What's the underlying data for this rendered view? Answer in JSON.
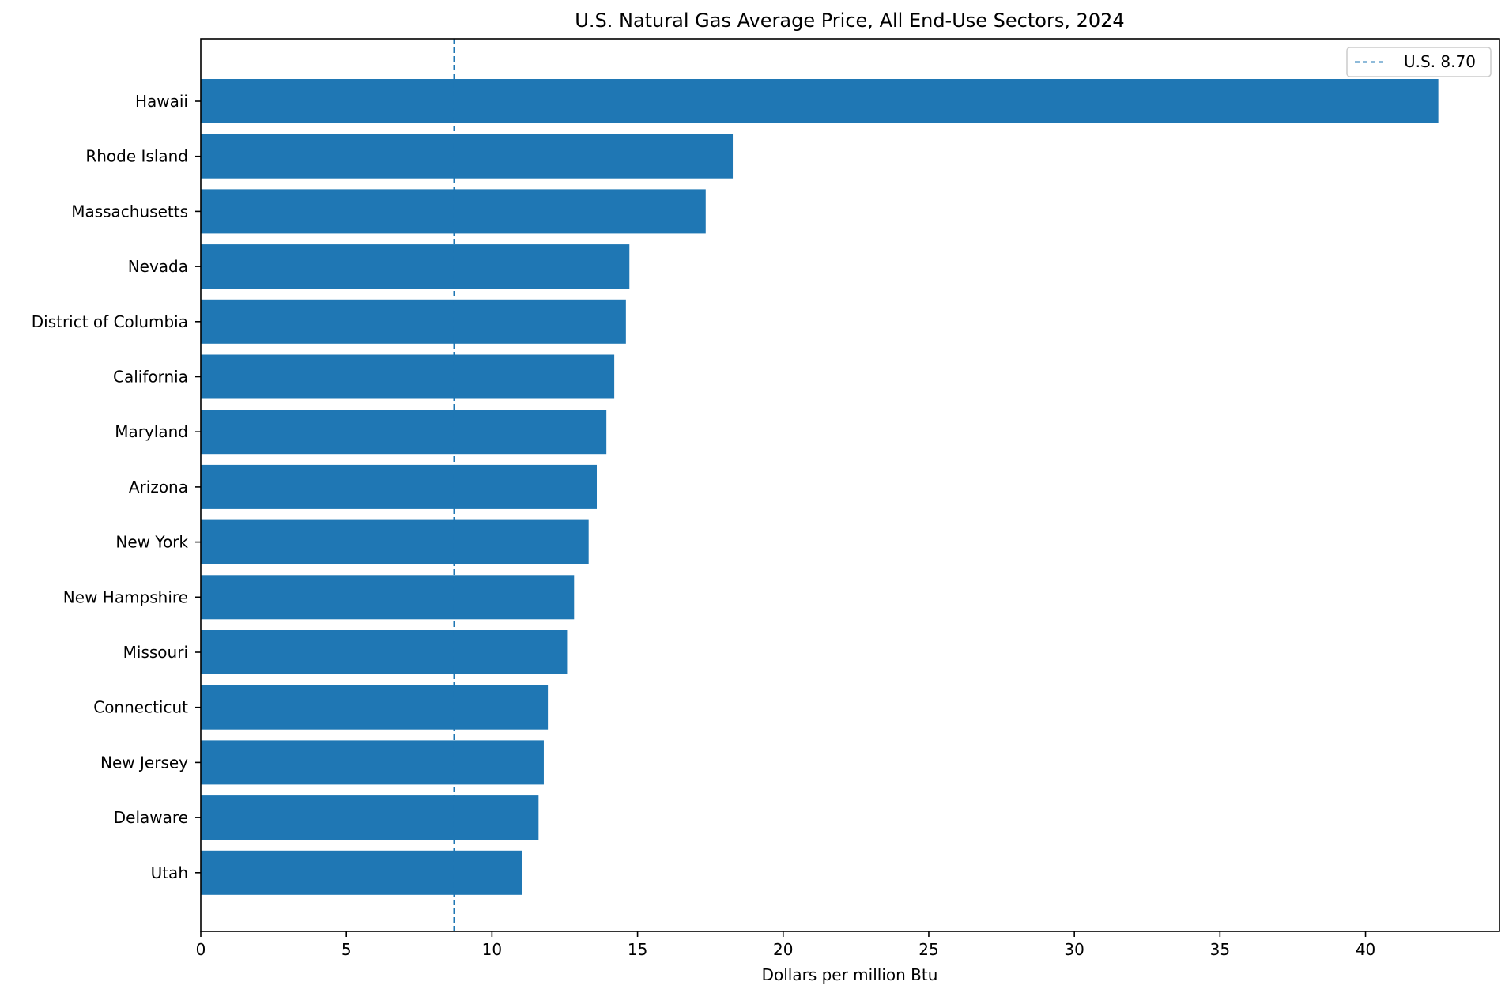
{
  "chart_data": {
    "type": "bar",
    "orientation": "horizontal",
    "title": "U.S. Natural Gas Average Price, All End-Use Sectors, 2024",
    "xlabel": "Dollars per million Btu",
    "ylabel": "",
    "xlim": [
      0,
      44.6
    ],
    "xticks": [
      0,
      5,
      10,
      15,
      20,
      25,
      30,
      35,
      40
    ],
    "grid": false,
    "legend_position": "top-right",
    "bar_color": "#1f77b4",
    "categories": [
      "Hawaii",
      "Rhode Island",
      "Massachusetts",
      "Nevada",
      "District of Columbia",
      "California",
      "Maryland",
      "Arizona",
      "New York",
      "New Hampshire",
      "Missouri",
      "Connecticut",
      "New Jersey",
      "Delaware",
      "Utah"
    ],
    "values": [
      42.5,
      18.27,
      17.34,
      14.72,
      14.6,
      14.2,
      13.93,
      13.6,
      13.32,
      12.82,
      12.58,
      11.92,
      11.78,
      11.6,
      11.04
    ],
    "reference_line": {
      "label": "U.S. 8.70",
      "value": 8.7,
      "style": "dashed",
      "color": "#1f77b4"
    }
  }
}
